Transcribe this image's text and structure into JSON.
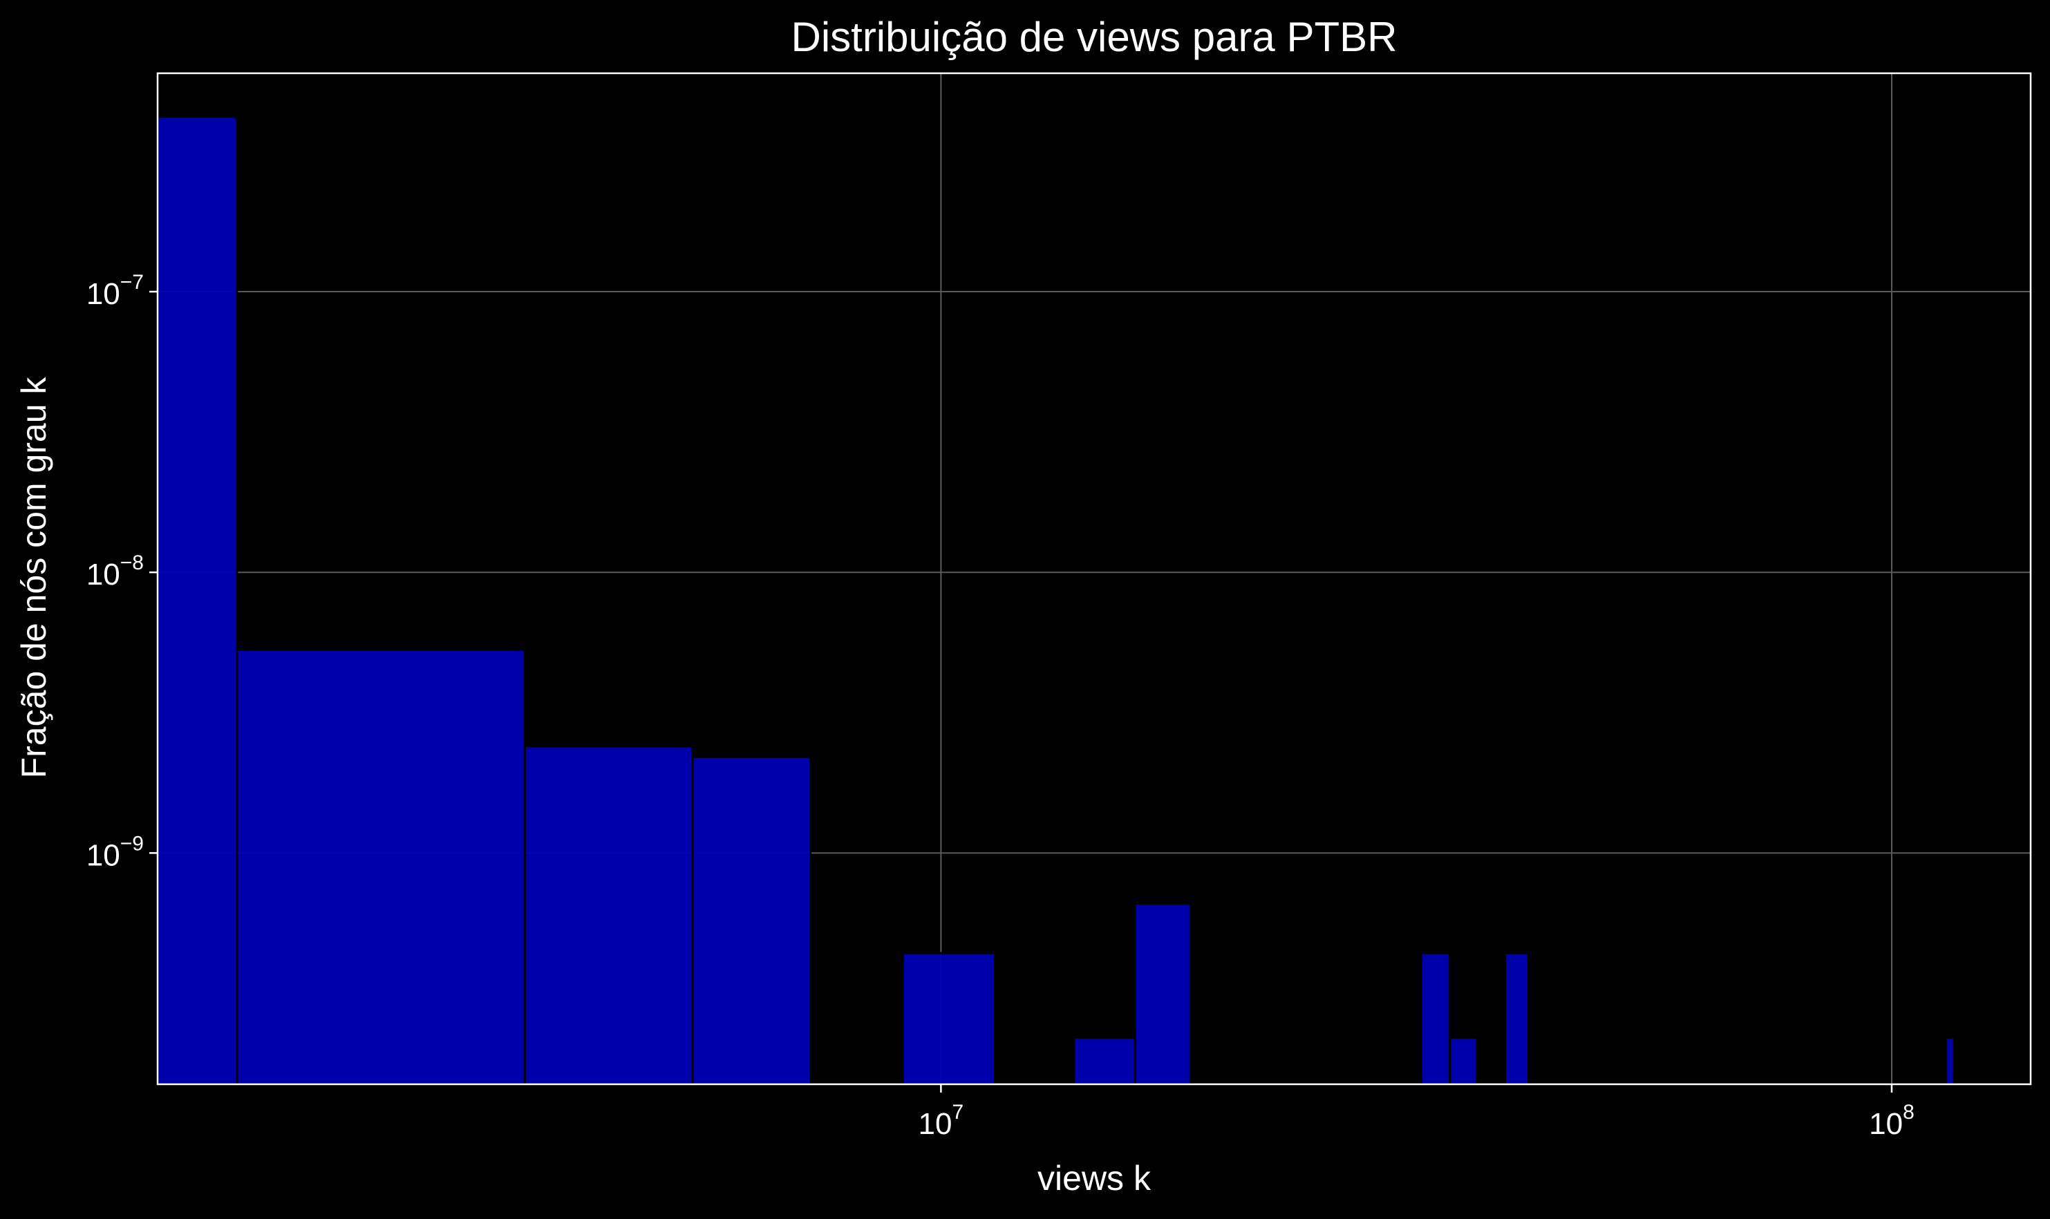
{
  "chart_data": {
    "type": "bar",
    "title": "Distribuição de views para PTBR",
    "xlabel": "views k",
    "ylabel": "Fração de nós com grau k",
    "x_scale": "log",
    "y_scale": "log",
    "xlim": [
      1500000,
      140000000
    ],
    "ylim": [
      1.5e-10,
      6e-07
    ],
    "x_ticks": [
      {
        "value": 10000000,
        "base": "10",
        "exp": "7"
      },
      {
        "value": 100000000,
        "base": "10",
        "exp": "8"
      }
    ],
    "y_ticks": [
      {
        "value": 1e-07,
        "base": "10",
        "exp": "−7"
      },
      {
        "value": 1e-08,
        "base": "10",
        "exp": "−8"
      },
      {
        "value": 1e-09,
        "base": "10",
        "exp": "−9"
      }
    ],
    "grid": true,
    "bar_color": "#0000b4",
    "background": "#000000",
    "bins": [
      {
        "x0": 1500000,
        "x1": 1818000,
        "value": 4.2e-07
      },
      {
        "x0": 1818000,
        "x1": 3650000,
        "value": 5.3e-09
      },
      {
        "x0": 3650000,
        "x1": 5480000,
        "value": 2.4e-09
      },
      {
        "x0": 5480000,
        "x1": 7290000,
        "value": 2.2e-09
      },
      {
        "x0": 7290000,
        "x1": 9120000,
        "value": 0.0
      },
      {
        "x0": 9120000,
        "x1": 11400000,
        "value": 4.4e-10
      },
      {
        "x0": 13800000,
        "x1": 16000000,
        "value": 2.2e-10
      },
      {
        "x0": 16000000,
        "x1": 18300000,
        "value": 6.6e-10
      },
      {
        "x0": 32000000,
        "x1": 34300000,
        "value": 4.4e-10
      },
      {
        "x0": 34300000,
        "x1": 36600000,
        "value": 2.2e-10
      },
      {
        "x0": 39200000,
        "x1": 41500000,
        "value": 4.4e-10
      },
      {
        "x0": 114000000,
        "x1": 116300000,
        "value": 2.2e-10
      }
    ]
  }
}
